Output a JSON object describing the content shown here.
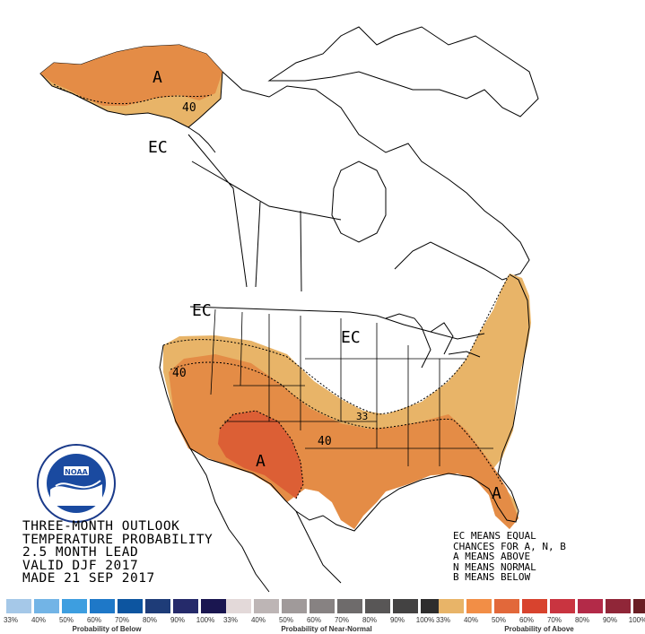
{
  "title_lines": [
    "THREE-MONTH OUTLOOK",
    "TEMPERATURE PROBABILITY",
    "2.5 MONTH LEAD",
    "VALID DJF 2017",
    "MADE 21 SEP 2017"
  ],
  "notes": [
    "EC MEANS EQUAL",
    "CHANCES FOR A, N, B",
    "A MEANS ABOVE",
    "N MEANS NORMAL",
    "B MEANS BELOW"
  ],
  "map_labels": {
    "alaska_a": "A",
    "alaska_40": "40",
    "ec_northwest": "EC",
    "ec_pacific": "EC",
    "ec_central": "EC",
    "west_40": "40",
    "southwest_a": "A",
    "southern_plains_40": "40",
    "contour_33": "33",
    "florida_a": "A"
  },
  "legend": {
    "below": {
      "caption": "Probability of Below",
      "ticks": [
        "33%",
        "40%",
        "50%",
        "60%",
        "70%",
        "80%",
        "90%",
        "100%"
      ],
      "colors": [
        "#a5c8e8",
        "#72b4e6",
        "#3d9ee0",
        "#1e78c8",
        "#0d55a0",
        "#1e3c78",
        "#252a6a",
        "#1a1650"
      ]
    },
    "normal": {
      "caption": "Probability of Near-Normal",
      "ticks": [
        "33%",
        "40%",
        "50%",
        "60%",
        "70%",
        "80%",
        "90%",
        "100%"
      ],
      "colors": [
        "#e3d9d9",
        "#bdb5b5",
        "#a09a9a",
        "#878282",
        "#6e6b6b",
        "#585656",
        "#434242",
        "#2e2d2d"
      ]
    },
    "above": {
      "caption": "Probability of Above",
      "ticks": [
        "33%",
        "40%",
        "50%",
        "60%",
        "70%",
        "80%",
        "90%",
        "100%"
      ],
      "colors": [
        "#e8b468",
        "#f28e46",
        "#e2683a",
        "#d8432e",
        "#c93440",
        "#b32a48",
        "#902638",
        "#6a1e24"
      ]
    }
  },
  "colors": {
    "above_33_40": "#e8b468",
    "above_40_50": "#e48c46",
    "above_50_60": "#dc5f35",
    "outline": "#000000"
  }
}
